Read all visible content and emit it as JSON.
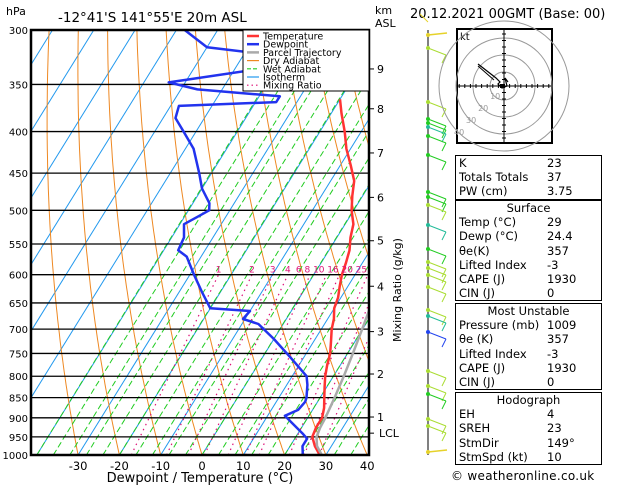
{
  "header": {
    "pressure_unit": "hPa",
    "location": "-12°41'S  141°55'E  20m  ASL",
    "height_unit_line1": "km",
    "height_unit_line2": "ASL",
    "datetime": "20.12.2021  00GMT  (Base: 00)"
  },
  "chart_data": {
    "type": "line",
    "title": "-12°41'S 141°55'E 20m ASL",
    "xlabel": "Dewpoint / Temperature (°C)",
    "ylabel": "hPa",
    "right_label": "Mixing Ratio (g/kg)",
    "xlim": [
      -40,
      40
    ],
    "ylim": [
      1000,
      300
    ],
    "x_ticks": [
      -30,
      -20,
      -10,
      0,
      10,
      20,
      30,
      40
    ],
    "pressure_ticks": [
      300,
      350,
      400,
      450,
      500,
      550,
      600,
      650,
      700,
      750,
      800,
      850,
      900,
      950,
      1000
    ],
    "height_ticks_km": [
      {
        "label": "9",
        "p": 335
      },
      {
        "label": "8",
        "p": 375
      },
      {
        "label": "7",
        "p": 425
      },
      {
        "label": "6",
        "p": 482
      },
      {
        "label": "5",
        "p": 545
      },
      {
        "label": "4",
        "p": 620
      },
      {
        "label": "3",
        "p": 705
      },
      {
        "label": "2",
        "p": 795
      },
      {
        "label": "1",
        "p": 898
      },
      {
        "label": "LCL",
        "p": 940
      }
    ],
    "mixing_ratio_labels": [
      "1",
      "2",
      "3",
      "4",
      "6",
      "8",
      "10",
      "16",
      "20",
      "25"
    ],
    "mixing_ratio_values": [
      1,
      2,
      3,
      4,
      6,
      8,
      10,
      16,
      20,
      25
    ],
    "legend": [
      {
        "name": "Temperature",
        "color": "#ff3333",
        "style": "solid"
      },
      {
        "name": "Dewpoint",
        "color": "#2233ee",
        "style": "solid"
      },
      {
        "name": "Parcel Trajectory",
        "color": "#aaaaaa",
        "style": "solid"
      },
      {
        "name": "Dry Adiabat",
        "color": "#ee8822",
        "style": "solid"
      },
      {
        "name": "Wet Adiabat",
        "color": "#22cc22",
        "style": "dashed"
      },
      {
        "name": "Isotherm",
        "color": "#2299ee",
        "style": "solid"
      },
      {
        "name": "Mixing Ratio",
        "color": "#dd1177",
        "style": "dotted"
      }
    ],
    "legend_position": "top-right",
    "series": [
      {
        "name": "Temperature",
        "points": [
          [
            1000,
            28.5
          ],
          [
            975,
            26
          ],
          [
            950,
            24
          ],
          [
            925,
            23.5
          ],
          [
            900,
            23.5
          ],
          [
            875,
            22.5
          ],
          [
            850,
            21
          ],
          [
            825,
            19.5
          ],
          [
            800,
            18
          ],
          [
            775,
            16.8
          ],
          [
            750,
            15.8
          ],
          [
            725,
            14.2
          ],
          [
            700,
            12.5
          ],
          [
            680,
            11.5
          ],
          [
            660,
            10
          ],
          [
            640,
            9.3
          ],
          [
            620,
            8
          ],
          [
            600,
            6.8
          ],
          [
            580,
            6
          ],
          [
            560,
            5
          ],
          [
            540,
            3.3
          ],
          [
            520,
            2
          ],
          [
            500,
            -0.5
          ],
          [
            480,
            -2.5
          ],
          [
            460,
            -4.3
          ],
          [
            440,
            -7.5
          ],
          [
            420,
            -11
          ],
          [
            400,
            -14
          ],
          [
            380,
            -17.5
          ],
          [
            365,
            -20
          ]
        ]
      },
      {
        "name": "Dewpoint",
        "points": [
          [
            1000,
            24.4
          ],
          [
            975,
            23
          ],
          [
            955,
            23
          ],
          [
            940,
            21
          ],
          [
            910,
            16.5
          ],
          [
            895,
            14.2
          ],
          [
            880,
            16.5
          ],
          [
            860,
            17
          ],
          [
            850,
            16.7
          ],
          [
            820,
            15
          ],
          [
            800,
            13.5
          ],
          [
            760,
            7
          ],
          [
            720,
            0
          ],
          [
            690,
            -6
          ],
          [
            680,
            -10.5
          ],
          [
            665,
            -10
          ],
          [
            660,
            -20
          ],
          [
            630,
            -24.5
          ],
          [
            600,
            -29
          ],
          [
            570,
            -33.5
          ],
          [
            560,
            -36.5
          ],
          [
            540,
            -37
          ],
          [
            520,
            -39
          ],
          [
            510,
            -37
          ],
          [
            500,
            -35
          ],
          [
            490,
            -36
          ],
          [
            470,
            -40
          ],
          [
            450,
            -43
          ],
          [
            420,
            -48
          ],
          [
            400,
            -53
          ],
          [
            385,
            -57
          ],
          [
            372,
            -58
          ],
          [
            368,
            -35
          ],
          [
            362,
            -35
          ],
          [
            355,
            -56
          ],
          [
            348,
            -64
          ],
          [
            330,
            -36
          ],
          [
            325,
            -36
          ],
          [
            315,
            -60
          ],
          [
            300,
            -68
          ]
        ]
      },
      {
        "name": "Parcel Trajectory",
        "points": [
          [
            1000,
            29
          ],
          [
            975,
            26.5
          ],
          [
            950,
            25
          ],
          [
            925,
            24.5
          ],
          [
            900,
            24.3
          ],
          [
            850,
            23.5
          ],
          [
            800,
            22.5
          ],
          [
            750,
            21.3
          ],
          [
            700,
            19.9
          ],
          [
            650,
            18.3
          ],
          [
            600,
            16.3
          ],
          [
            550,
            13.9
          ],
          [
            500,
            11
          ],
          [
            450,
            7
          ],
          [
            400,
            1.8
          ],
          [
            370,
            -2
          ]
        ]
      }
    ],
    "wind_profile_colors": [
      "#e6d22a",
      "#aadd33",
      "#22cc22",
      "#22bb99",
      "#2244ee"
    ]
  },
  "indices": {
    "rows": [
      {
        "label": "K",
        "value": "23"
      },
      {
        "label": "Totals Totals",
        "value": "37"
      },
      {
        "label": "PW (cm)",
        "value": "3.75"
      }
    ]
  },
  "surface": {
    "title": "Surface",
    "rows": [
      {
        "label": "Temp (°C)",
        "value": "29"
      },
      {
        "label": "Dewp (°C)",
        "value": "24.4"
      },
      {
        "label": "θe(K)",
        "value": "357"
      },
      {
        "label": "Lifted Index",
        "value": "-3"
      },
      {
        "label": "CAPE (J)",
        "value": "1930"
      },
      {
        "label": "CIN (J)",
        "value": "0"
      }
    ]
  },
  "most_unstable": {
    "title": "Most Unstable",
    "rows": [
      {
        "label": "Pressure (mb)",
        "value": "1009"
      },
      {
        "label": "θe (K)",
        "value": "357"
      },
      {
        "label": "Lifted Index",
        "value": "-3"
      },
      {
        "label": "CAPE (J)",
        "value": "1930"
      },
      {
        "label": "CIN (J)",
        "value": "0"
      }
    ]
  },
  "hodograph": {
    "title": "Hodograph",
    "unit_label": "kt",
    "ring_labels": [
      "10",
      "20",
      "30",
      "40"
    ],
    "rows": [
      {
        "label": "EH",
        "value": "4"
      },
      {
        "label": "SREH",
        "value": "23"
      },
      {
        "label": "StmDir",
        "value": "149°"
      },
      {
        "label": "StmSpd (kt)",
        "value": "10"
      }
    ]
  },
  "footer": {
    "copyright": "© weatheronline.co.uk"
  }
}
